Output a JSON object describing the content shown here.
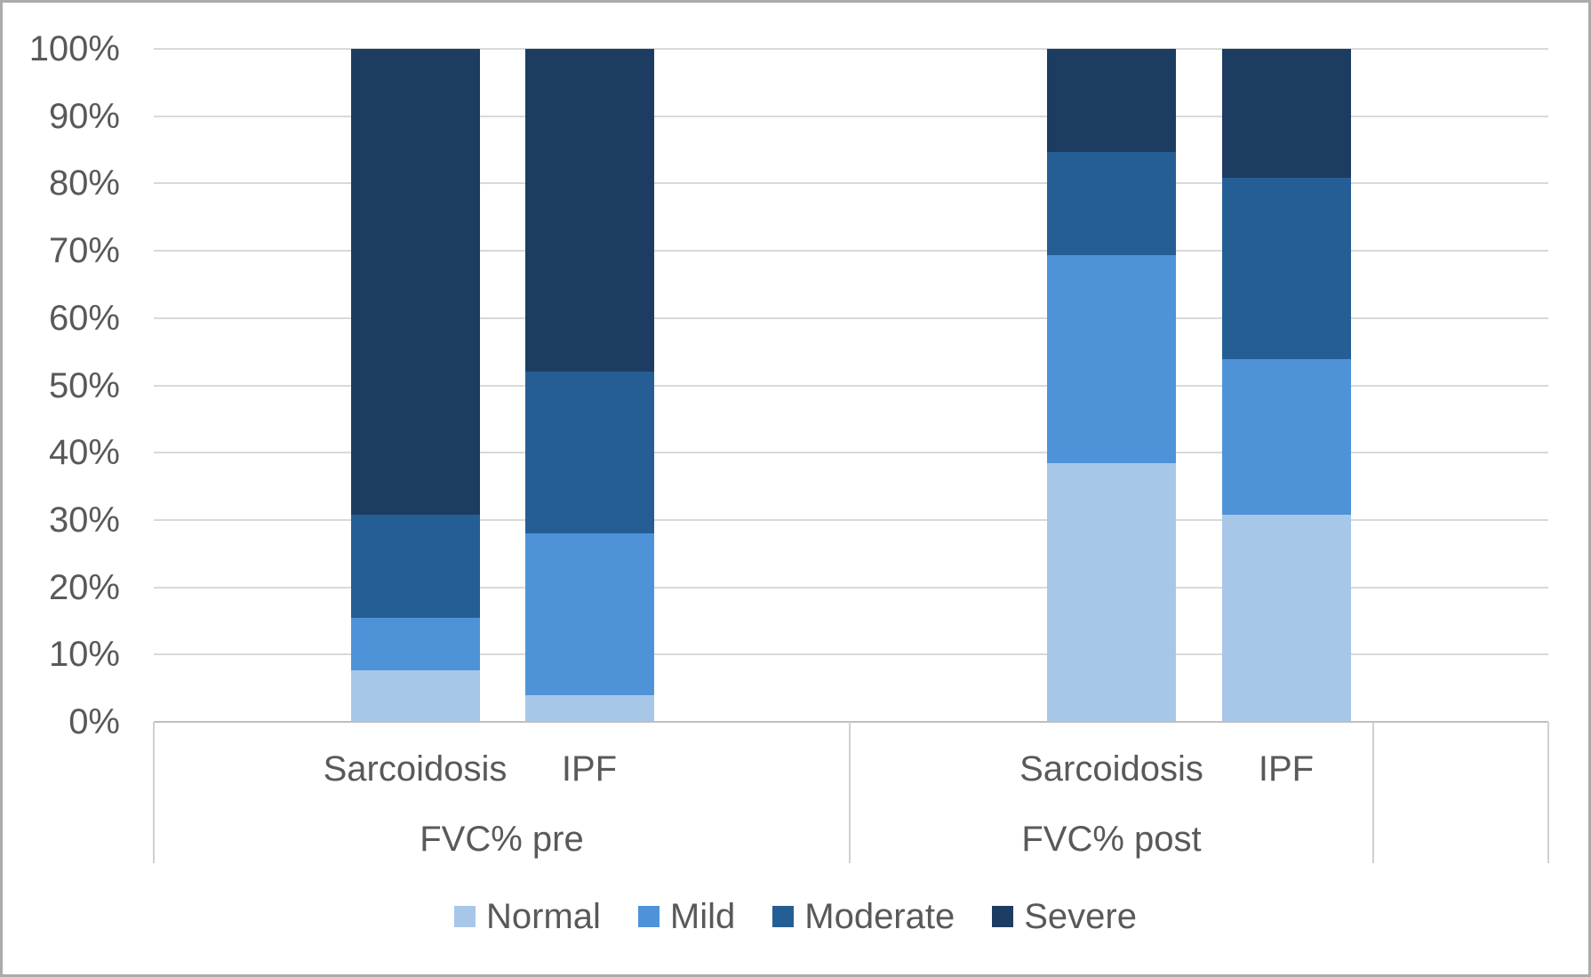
{
  "chart_data": {
    "type": "bar",
    "variant": "100-percent-stacked-column",
    "title": "",
    "groups": [
      {
        "label": "FVC% pre",
        "categories": [
          "Sarcoidosis",
          "IPF"
        ]
      },
      {
        "label": "FVC% post",
        "categories": [
          "Sarcoidosis",
          "IPF"
        ]
      }
    ],
    "series": [
      {
        "name": "Normal",
        "color": "#A7C7E8",
        "values": [
          7.7,
          4.0,
          38.5,
          30.8
        ]
      },
      {
        "name": "Mild",
        "color": "#4E93D8",
        "values": [
          7.7,
          24.0,
          30.8,
          23.1
        ]
      },
      {
        "name": "Moderate",
        "color": "#255E94",
        "values": [
          15.4,
          24.0,
          15.4,
          26.9
        ]
      },
      {
        "name": "Severe",
        "color": "#1C3D61",
        "values": [
          69.2,
          48.0,
          15.4,
          19.2
        ]
      }
    ],
    "y_axis": {
      "min": 0,
      "max": 100,
      "step": 10,
      "tick_labels": [
        "0%",
        "10%",
        "20%",
        "30%",
        "40%",
        "50%",
        "60%",
        "70%",
        "80%",
        "90%",
        "100%"
      ]
    },
    "legend": {
      "position": "bottom",
      "entries": [
        "Normal",
        "Mild",
        "Moderate",
        "Severe"
      ]
    },
    "grid": true,
    "colors": {
      "text": "#595959",
      "gridline": "#D9D9D9",
      "axis_line": "#BFBFBF",
      "band_separator": "#D0D0D0",
      "frame_border": "#ABABAB",
      "background": "#FFFFFF"
    }
  }
}
